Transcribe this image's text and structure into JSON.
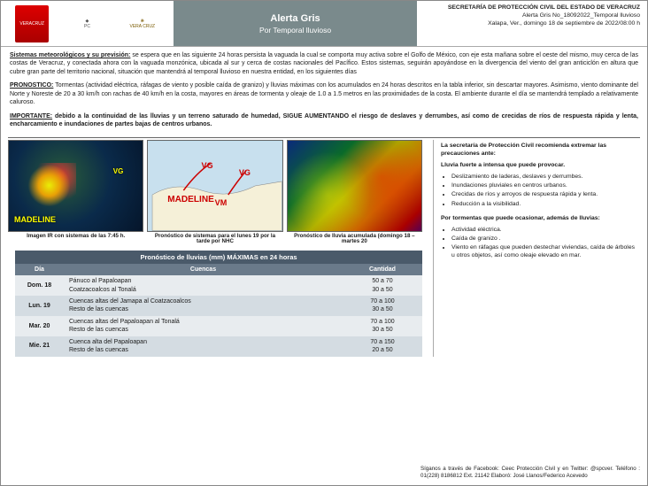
{
  "header": {
    "logos": {
      "v1": "VERACRUZ",
      "v2": "PC",
      "v3": "VERA CRUZ"
    },
    "title": "Alerta Gris",
    "subtitle": "Por Temporal lluvioso",
    "right1": "SECRETARÍA DE PROTECCIÓN CIVIL DEL ESTADO DE VERACRUZ",
    "right2": "Alerta Gris No_18092022_Temporal lluvioso",
    "right3": "Xalapa, Ver., domingo 18 de septiembre de 2022/08:00  h"
  },
  "para1_lead": "Sistemas meteorológicos y su previsión:",
  "para1": " se espera que en las siguiente 24 horas persista la vaguada la cual se comporta muy activa sobre el Golfo de México, con eje esta mañana sobre el oeste del mismo, muy cerca de las costas de Veracruz, y conectada ahora con la vaguada monzónica, ubicada al sur y cerca de costas nacionales del Pacífico. Estos sistemas, seguirán apoyándose en la divergencia del viento del gran anticiclón en altura que cubre gran parte del territorio nacional, situación que mantendrá al temporal lluvioso en nuestra entidad, en los siguientes días",
  "para2_lead": "PRONOSTICO:",
  "para2": " Tormentas (actividad eléctrica, ráfagas de viento y posible caída de granizo) y lluvias máximas con los acumulados en 24 horas descritos en la tabla inferior, sin descartar mayores. Asimismo, viento dominante del Norte y Noreste de 20 a 30 km/h con rachas de 40 km/h en la costa, mayores en áreas de tormenta y oleaje de 1.0 a 1.5 metros en las proximidades de la costa. El ambiente durante el día se mantendrá templado a relativamente caluroso.",
  "para3_lead": "IMPORTANTE:",
  "para3": " debido a la continuidad de las lluvias y un terreno saturado de humedad, SIGUE AUMENTANDO el riesgo de deslaves y derrumbes, así como de crecidas de ríos de respuesta rápida y lenta, encharcamiento e inundaciones de partes bajas de centros urbanos.",
  "maps": {
    "m1": {
      "caption": "Imagen IR con sistemas de las 7:45 h.",
      "lbl1": "MADELINE",
      "lbl2": "VG"
    },
    "m2": {
      "caption": "Pronóstico de sistemas para el lunes 19 por la tarde por NHC",
      "lbl_mad": "MADELINE",
      "lbl_vg": "VG",
      "lbl_vm": "VM"
    },
    "m3": {
      "caption": "Pronóstico de lluvia acumulada (domingo 18 – martes 20"
    }
  },
  "right": {
    "hd1": "La secretaría de Protección Civil recomienda extremar las precauciones ante:",
    "hd2": "Lluvia fuerte a intensa que puede provocar.",
    "list1": [
      "Deslizamiento de laderas, deslaves y derrumbes.",
      "Inundaciones pluviales en centros urbanos.",
      "Crecidas de ríos y arroyos de respuesta rápida y lenta.",
      "Reducción a la visibilidad."
    ],
    "hd3": "Por tormentas que puede ocasionar, además de lluvias:",
    "list2": [
      "Actividad eléctrica.",
      "Caída de granizo .",
      "Viento en ráfagas que pueden destechar viviendas, caída de árboles u otros objetos, así como oleaje elevado en mar."
    ]
  },
  "table": {
    "title": "Pronóstico de lluvias (mm) MÁXIMAS en 24 horas",
    "cols": [
      "Día",
      "Cuencas",
      "Cantidad"
    ],
    "rows": [
      {
        "dia": "Dom. 18",
        "cuencas": "Pánuco al Papaloapan\nCoatzacoalcos al Tonalá",
        "cant": "50 a 70\n30 a 50"
      },
      {
        "dia": "Lun. 19",
        "cuencas": "Cuencas altas del Jamapa al Coatzacoalcos\nResto de las cuencas",
        "cant": "70 a 100\n30 a 50"
      },
      {
        "dia": "Mar. 20",
        "cuencas": "Cuencas altas del Papaloapan al Tonalá\nResto de las cuencas",
        "cant": "70 a 100\n30 a 50"
      },
      {
        "dia": "Mie. 21",
        "cuencas": "Cuenca alta del Papaloapan\nResto de las cuencas",
        "cant": "70 a 150\n20 a 50"
      }
    ]
  },
  "footer": {
    "text": "Síganos a través de Facebook: Ceec Protección Civil y en Twitter: @spcver.  Teléfono : 01(228) 8186812 Ext. 21142 Elaboró: José Llanos/Federico Acevedo"
  }
}
